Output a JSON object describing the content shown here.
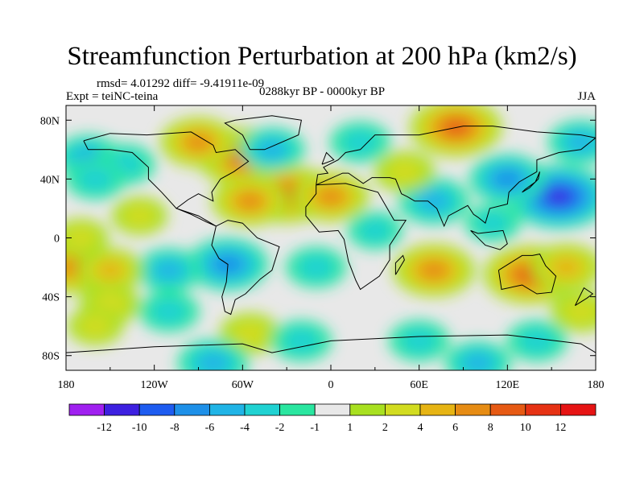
{
  "chart_data": {
    "type": "heatmap",
    "title": "Streamfunction Perturbation at 200 hPa (km2/s)",
    "stats": "rmsd= 4.01292 diff= -9.41911e-09",
    "left_label": "Expt = teiNC-teina",
    "center_label": "0288kyr BP - 0000kyr BP",
    "right_label": "JJA",
    "x_ticks": [
      "180",
      "120W",
      "60W",
      "0",
      "60E",
      "120E",
      "180"
    ],
    "x_tick_values": [
      -180,
      -120,
      -60,
      0,
      60,
      120,
      180
    ],
    "y_ticks": [
      "80N",
      "40N",
      "0",
      "40S",
      "80S"
    ],
    "y_tick_values": [
      80,
      40,
      0,
      -40,
      -80
    ],
    "xlim": [
      -180,
      180
    ],
    "ylim": [
      -90,
      90
    ],
    "colorbar": {
      "labels": [
        "-12",
        "-10",
        "-8",
        "-6",
        "-4",
        "-2",
        "-1",
        "1",
        "2",
        "4",
        "6",
        "8",
        "10",
        "12"
      ],
      "colors": [
        "#a020f0",
        "#3d20e0",
        "#1e5cf0",
        "#1e90e8",
        "#20b4e6",
        "#20d2d2",
        "#2ae6a0",
        "#e8e8e8",
        "#a8e020",
        "#d2dc20",
        "#e6b414",
        "#e68c14",
        "#e65a14",
        "#e63214",
        "#e61414"
      ]
    },
    "field_centers": [
      {
        "lon": -60,
        "lat": 55,
        "value": 9
      },
      {
        "lon": -90,
        "lat": 65,
        "value": 6
      },
      {
        "lon": -30,
        "lat": 30,
        "value": 9
      },
      {
        "lon": 0,
        "lat": 28,
        "value": 6
      },
      {
        "lon": -55,
        "lat": 25,
        "value": 6
      },
      {
        "lon": -70,
        "lat": -18,
        "value": -7
      },
      {
        "lon": -110,
        "lat": -22,
        "value": -4
      },
      {
        "lon": -10,
        "lat": -20,
        "value": -3
      },
      {
        "lon": 70,
        "lat": -22,
        "value": 7
      },
      {
        "lon": 135,
        "lat": -25,
        "value": 9
      },
      {
        "lon": 160,
        "lat": -20,
        "value": 5
      },
      {
        "lon": 85,
        "lat": 75,
        "value": 9
      },
      {
        "lon": 155,
        "lat": 28,
        "value": -11
      },
      {
        "lon": 120,
        "lat": 40,
        "value": -6
      },
      {
        "lon": 70,
        "lat": 25,
        "value": -5
      },
      {
        "lon": -175,
        "lat": -20,
        "value": 7
      },
      {
        "lon": -150,
        "lat": -22,
        "value": 4
      },
      {
        "lon": -170,
        "lat": 0,
        "value": 2
      },
      {
        "lon": -165,
        "lat": 55,
        "value": -4
      },
      {
        "lon": -140,
        "lat": 50,
        "value": -3
      },
      {
        "lon": -160,
        "lat": 40,
        "value": -3
      },
      {
        "lon": -150,
        "lat": -45,
        "value": 3
      },
      {
        "lon": -110,
        "lat": -50,
        "value": -3
      },
      {
        "lon": -55,
        "lat": -65,
        "value": 3
      },
      {
        "lon": -160,
        "lat": -60,
        "value": 2
      },
      {
        "lon": -20,
        "lat": -70,
        "value": -3
      },
      {
        "lon": 60,
        "lat": -70,
        "value": -3
      },
      {
        "lon": 140,
        "lat": -70,
        "value": -3
      },
      {
        "lon": -80,
        "lat": -85,
        "value": -5
      },
      {
        "lon": 100,
        "lat": -85,
        "value": -4
      },
      {
        "lon": 20,
        "lat": 65,
        "value": -3
      },
      {
        "lon": -40,
        "lat": 60,
        "value": -4
      },
      {
        "lon": 50,
        "lat": 45,
        "value": 3
      },
      {
        "lon": 170,
        "lat": 65,
        "value": -4
      },
      {
        "lon": 110,
        "lat": 10,
        "value": -2
      },
      {
        "lon": 30,
        "lat": 5,
        "value": -2
      },
      {
        "lon": -130,
        "lat": 15,
        "value": 2
      },
      {
        "lon": 170,
        "lat": -50,
        "value": 3
      }
    ]
  }
}
